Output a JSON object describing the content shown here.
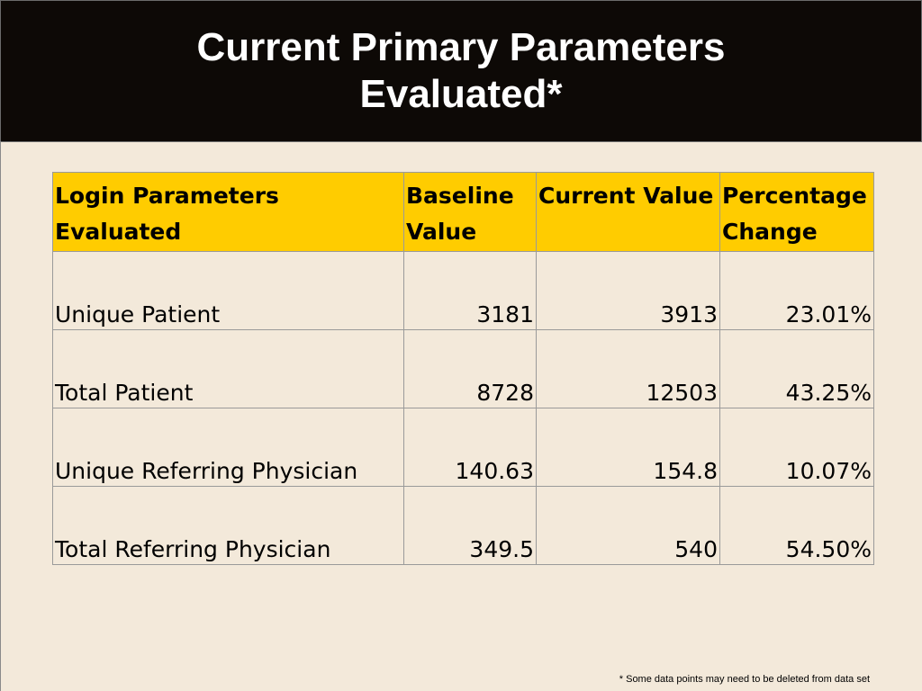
{
  "slide": {
    "title": "Current Primary Parameters Evaluated*",
    "footnote": "* Some data points may need to be deleted from data set"
  },
  "table": {
    "headers": [
      "Login Parameters Evaluated",
      "Baseline Value",
      "Current Value",
      "Percentage Change"
    ],
    "rows": [
      {
        "parameter": "Unique Patient",
        "baseline": "3181",
        "current": "3913",
        "change": "23.01%"
      },
      {
        "parameter": "Total Patient",
        "baseline": "8728",
        "current": "12503",
        "change": "43.25%"
      },
      {
        "parameter": "Unique Referring Physician",
        "baseline": "140.63",
        "current": "154.8",
        "change": "10.07%"
      },
      {
        "parameter": "Total Referring Physician",
        "baseline": "349.5",
        "current": "540",
        "change": "54.50%"
      }
    ]
  },
  "colors": {
    "title_background": "#0d0906",
    "title_text": "#ffffff",
    "slide_background": "#f3e9da",
    "header_fill": "#ffcc00"
  }
}
